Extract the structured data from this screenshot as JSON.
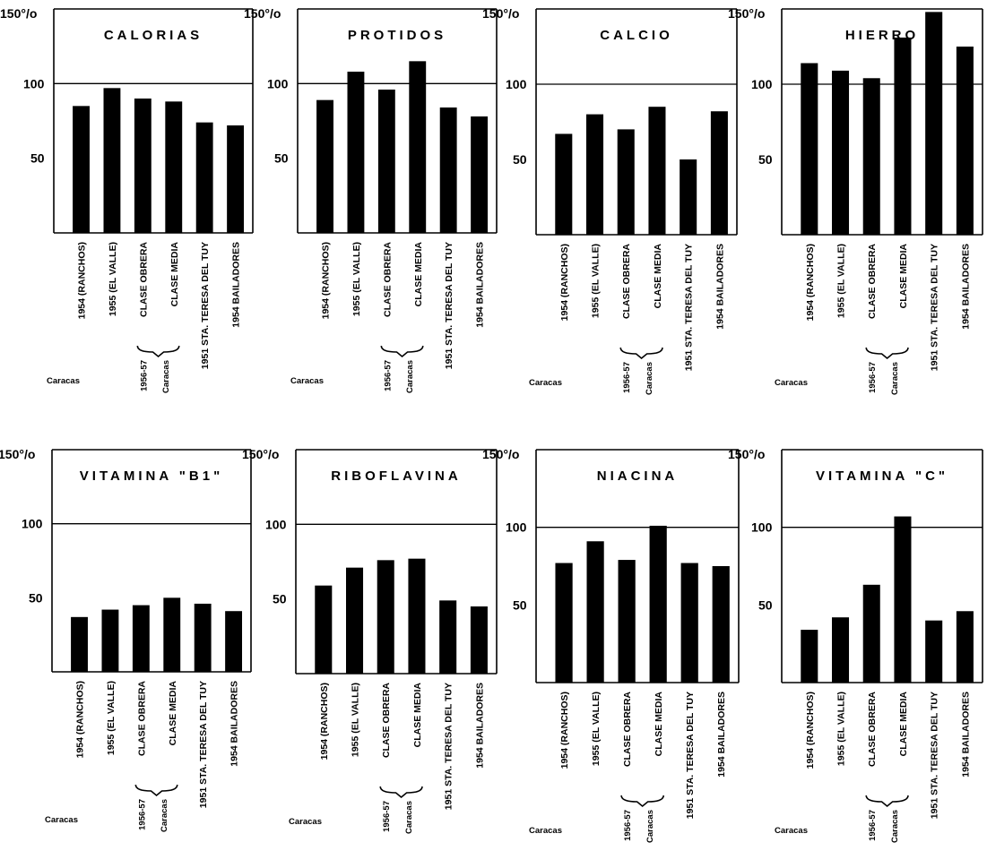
{
  "axis": {
    "top_label": "150°/o",
    "ticks": [
      "100",
      "50"
    ]
  },
  "categories": [
    "1954 (RANCHOS)",
    "1955 (EL VALLE)",
    "CLASE OBRERA",
    "CLASE MEDIA",
    "1951 STA. TERESA DEL TUY",
    "1954 BAILADORES"
  ],
  "group_labels": {
    "caracas": "Caracas",
    "period": "1956-57",
    "period_city": "Caracas"
  },
  "chart_data": [
    {
      "type": "bar",
      "title": "CALORIAS",
      "ylim": [
        0,
        150
      ],
      "ylabel": "%",
      "reference_line": 100,
      "values": [
        85,
        97,
        90,
        88,
        74,
        72
      ]
    },
    {
      "type": "bar",
      "title": "PROTIDOS",
      "ylim": [
        0,
        150
      ],
      "ylabel": "%",
      "reference_line": 100,
      "values": [
        89,
        108,
        96,
        115,
        84,
        78
      ]
    },
    {
      "type": "bar",
      "title": "CALCIO",
      "ylim": [
        0,
        150
      ],
      "ylabel": "%",
      "reference_line": 100,
      "values": [
        67,
        80,
        70,
        85,
        50,
        82
      ]
    },
    {
      "type": "bar",
      "title": "HIERRO",
      "ylim": [
        0,
        150
      ],
      "ylabel": "%",
      "reference_line": 100,
      "values": [
        114,
        109,
        104,
        131,
        148,
        125
      ]
    },
    {
      "type": "bar",
      "title": "VITAMINA \"B1\"",
      "ylim": [
        0,
        150
      ],
      "ylabel": "%",
      "reference_line": 100,
      "values": [
        37,
        42,
        45,
        50,
        46,
        41
      ]
    },
    {
      "type": "bar",
      "title": "RIBOFLAVINA",
      "ylim": [
        0,
        150
      ],
      "ylabel": "%",
      "reference_line": 100,
      "values": [
        59,
        71,
        76,
        77,
        49,
        45
      ]
    },
    {
      "type": "bar",
      "title": "NIACINA",
      "ylim": [
        0,
        150
      ],
      "ylabel": "%",
      "reference_line": 100,
      "values": [
        77,
        91,
        79,
        101,
        77,
        75
      ]
    },
    {
      "type": "bar",
      "title": "VITAMINA \"C\"",
      "ylim": [
        0,
        150
      ],
      "ylabel": "%",
      "reference_line": 100,
      "values": [
        34,
        42,
        63,
        107,
        40,
        46
      ]
    }
  ]
}
